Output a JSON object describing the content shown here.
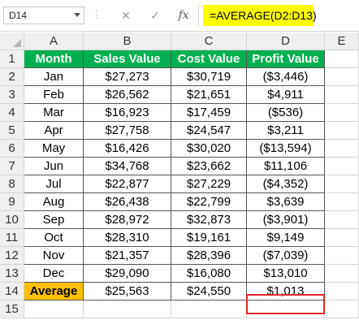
{
  "formula_bar": {
    "name_box": "D14",
    "cancel_icon": "✕",
    "enter_icon": "✓",
    "fx_label": "fx",
    "formula": "=AVERAGE(D2:D13)"
  },
  "columns": [
    "A",
    "B",
    "C",
    "D",
    "E"
  ],
  "table": {
    "headers": [
      "Month",
      "Sales Value",
      "Cost Value",
      "Profit Value"
    ],
    "rows": [
      [
        "Jan",
        "$27,273",
        "$30,719",
        "($3,446)"
      ],
      [
        "Feb",
        "$26,562",
        "$21,651",
        "$4,911"
      ],
      [
        "Mar",
        "$16,923",
        "$17,459",
        "($536)"
      ],
      [
        "Apr",
        "$27,758",
        "$24,547",
        "$3,211"
      ],
      [
        "May",
        "$16,426",
        "$30,020",
        "($13,594)"
      ],
      [
        "Jun",
        "$34,768",
        "$23,662",
        "$11,106"
      ],
      [
        "Jul",
        "$22,877",
        "$27,229",
        "($4,352)"
      ],
      [
        "Aug",
        "$26,438",
        "$22,799",
        "$3,639"
      ],
      [
        "Sep",
        "$28,972",
        "$32,873",
        "($3,901)"
      ],
      [
        "Oct",
        "$28,310",
        "$19,161",
        "$9,149"
      ],
      [
        "Nov",
        "$21,357",
        "$28,396",
        "($7,039)"
      ],
      [
        "Dec",
        "$29,090",
        "$16,080",
        "$13,010"
      ]
    ],
    "average": [
      "Average",
      "$25,563",
      "$24,550",
      "$1,013"
    ]
  },
  "row_numbers": [
    "1",
    "2",
    "3",
    "4",
    "5",
    "6",
    "7",
    "8",
    "9",
    "10",
    "11",
    "12",
    "13",
    "14",
    "15"
  ],
  "colors": {
    "header_green": "#00b050",
    "average_orange": "#ffc000",
    "formula_highlight": "#ffff00",
    "selection_red": "#e0262a"
  }
}
